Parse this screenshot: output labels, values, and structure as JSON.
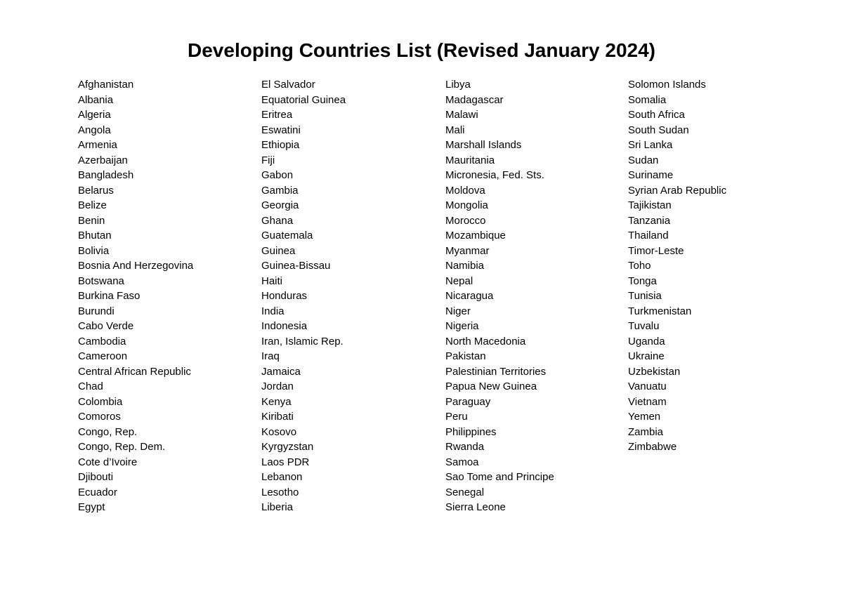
{
  "title": "Developing Countries List (Revised January 2024)",
  "columns": [
    [
      "Afghanistan",
      "Albania",
      "Algeria",
      "Angola",
      "Armenia",
      "Azerbaijan",
      "Bangladesh",
      "Belarus",
      "Belize",
      "Benin",
      "Bhutan",
      "Bolivia",
      "Bosnia And Herzegovina",
      "Botswana",
      "Burkina Faso",
      "Burundi",
      "Cabo Verde",
      "Cambodia",
      "Cameroon",
      "Central African Republic",
      "Chad",
      "Colombia",
      "Comoros",
      "Congo, Rep.",
      "Congo, Rep. Dem.",
      "Cote d’Ivoire",
      "Djibouti",
      "Ecuador",
      "Egypt"
    ],
    [
      "El Salvador",
      "Equatorial Guinea",
      "Eritrea",
      "Eswatini",
      "Ethiopia",
      "Fiji",
      "Gabon",
      "Gambia",
      "Georgia",
      "Ghana",
      "Guatemala",
      "Guinea",
      "Guinea-Bissau",
      "Haiti",
      "Honduras",
      "India",
      "Indonesia",
      "Iran, Islamic Rep.",
      "Iraq",
      "Jamaica",
      "Jordan",
      "Kenya",
      "Kiribati",
      "Kosovo",
      "Kyrgyzstan",
      "Laos PDR",
      "Lebanon",
      "Lesotho",
      "Liberia"
    ],
    [
      "Libya",
      "Madagascar",
      "Malawi",
      "Mali",
      "Marshall Islands",
      "Mauritania",
      "Micronesia, Fed. Sts.",
      "Moldova",
      "Mongolia",
      "Morocco",
      "Mozambique",
      "Myanmar",
      "Namibia",
      "Nepal",
      "Nicaragua",
      "Niger",
      "Nigeria",
      "North Macedonia",
      "Pakistan",
      "Palestinian Territories",
      "Papua New Guinea",
      "Paraguay",
      "Peru",
      "Philippines",
      "Rwanda",
      "Samoa",
      "Sao Tome and Principe",
      "Senegal",
      "Sierra Leone"
    ],
    [
      "Solomon Islands",
      "Somalia",
      "South Africa",
      "South Sudan",
      "Sri Lanka",
      "Sudan",
      "Suriname",
      "Syrian Arab Republic",
      "Tajikistan",
      "Tanzania",
      "Thailand",
      "Timor-Leste",
      "Toho",
      "Tonga",
      "Tunisia",
      "Turkmenistan",
      "Tuvalu",
      "Uganda",
      "Ukraine",
      "Uzbekistan",
      "Vanuatu",
      "Vietnam",
      "Yemen",
      "Zambia",
      "Zimbabwe"
    ]
  ]
}
